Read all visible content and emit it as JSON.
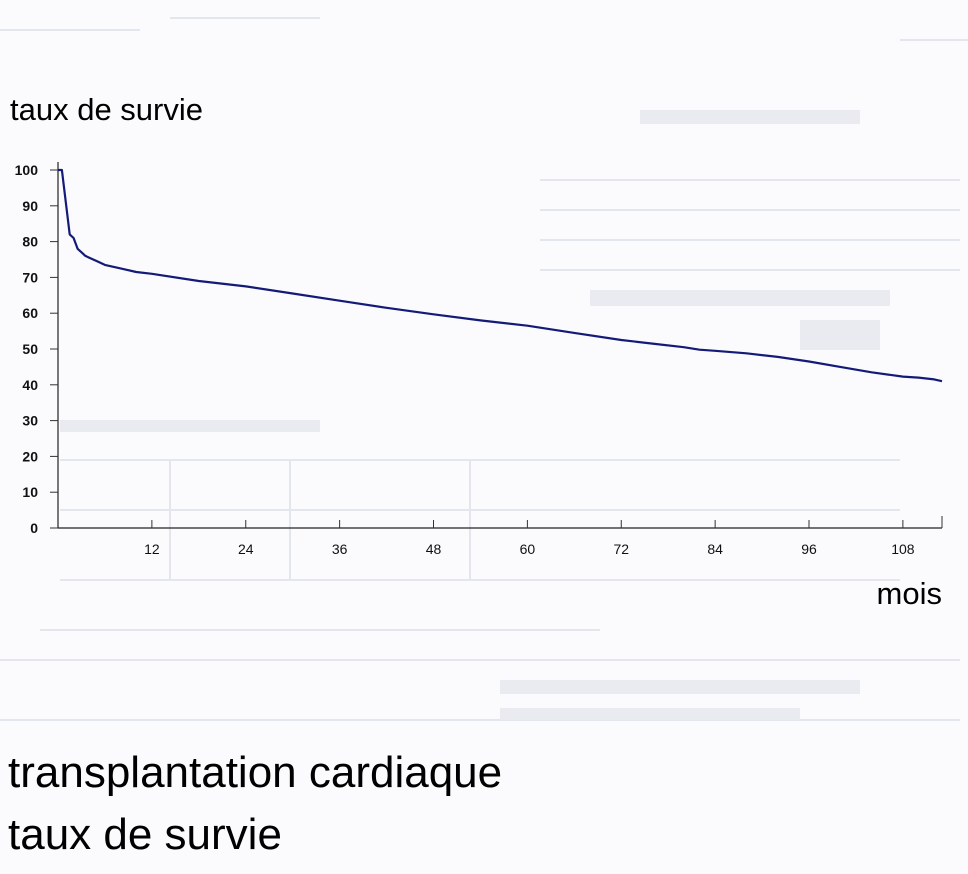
{
  "chart_data": {
    "type": "line",
    "ylabel": "taux de survie",
    "xlabel": "mois",
    "ylim": [
      0,
      100
    ],
    "xlim": [
      0,
      113
    ],
    "yticks": [
      "0",
      "10",
      "20",
      "30",
      "40",
      "50",
      "60",
      "70",
      "80",
      "90",
      "100"
    ],
    "xticks": [
      "12",
      "24",
      "36",
      "48",
      "60",
      "72",
      "84",
      "96",
      "108"
    ],
    "grid": false,
    "series": [
      {
        "color": "#141a78",
        "x": [
          0.5,
          1,
          1.5,
          2,
          2.5,
          3,
          3.5,
          4,
          5,
          6,
          8,
          10,
          12,
          18,
          24,
          30,
          36,
          42,
          48,
          54,
          60,
          66,
          72,
          76,
          80,
          82,
          84,
          88,
          92,
          96,
          100,
          104,
          108,
          110,
          112,
          113
        ],
        "y": [
          100,
          91,
          82,
          81,
          78,
          77,
          76,
          75.5,
          74.5,
          73.5,
          72.5,
          71.5,
          71,
          69,
          67.5,
          65.5,
          63.5,
          61.5,
          59.7,
          58,
          56.5,
          54.5,
          52.5,
          51.5,
          50.5,
          49.8,
          49.5,
          48.8,
          47.8,
          46.5,
          45,
          43.5,
          42.3,
          42,
          41.5,
          41
        ]
      }
    ]
  },
  "captions": {
    "line1": "transplantation cardiaque",
    "line2": "taux de survie"
  }
}
